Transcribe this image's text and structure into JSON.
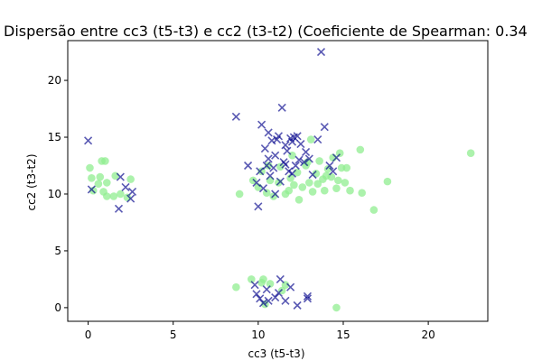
{
  "chart_data": {
    "type": "scatter",
    "title": "Dispersão entre cc3 (t5-t3) e cc2 (t3-t2) (Coeficiente de Spearman: 0.34",
    "xlabel": "cc3 (t5-t3)",
    "ylabel": "cc2 (t3-t2)",
    "xlim": [
      -1.2,
      23.5
    ],
    "ylim": [
      -1.2,
      23.5
    ],
    "xticks": [
      0,
      5,
      10,
      15,
      20
    ],
    "yticks": [
      0,
      5,
      10,
      15,
      20
    ],
    "grid": false,
    "series": [
      {
        "marker": "circle",
        "color": "#90EE90",
        "alpha": 0.75,
        "points": [
          [
            0.1,
            12.3
          ],
          [
            0.2,
            11.4
          ],
          [
            0.3,
            10.3
          ],
          [
            0.6,
            10.9
          ],
          [
            0.7,
            11.5
          ],
          [
            0.8,
            12.9
          ],
          [
            0.9,
            10.2
          ],
          [
            1.0,
            12.9
          ],
          [
            1.1,
            11.0
          ],
          [
            1.1,
            9.8
          ],
          [
            1.5,
            9.8
          ],
          [
            1.6,
            11.6
          ],
          [
            1.9,
            10.0
          ],
          [
            2.3,
            9.7
          ],
          [
            2.5,
            11.3
          ],
          [
            8.7,
            1.8
          ],
          [
            9.6,
            2.5
          ],
          [
            10.2,
            2.2
          ],
          [
            10.3,
            2.5
          ],
          [
            10.4,
            0.3
          ],
          [
            10.7,
            2.1
          ],
          [
            11.4,
            1.5
          ],
          [
            11.6,
            2.0
          ],
          [
            14.6,
            0.0
          ],
          [
            8.9,
            10.0
          ],
          [
            9.7,
            11.2
          ],
          [
            10.0,
            10.6
          ],
          [
            10.2,
            12.0
          ],
          [
            10.5,
            10.1
          ],
          [
            10.7,
            11.2
          ],
          [
            10.9,
            9.8
          ],
          [
            11.2,
            11.0
          ],
          [
            11.3,
            12.4
          ],
          [
            11.6,
            10.0
          ],
          [
            11.8,
            10.3
          ],
          [
            12.0,
            13.4
          ],
          [
            12.1,
            10.8
          ],
          [
            12.3,
            11.9
          ],
          [
            12.4,
            9.5
          ],
          [
            12.6,
            10.6
          ],
          [
            12.8,
            12.5
          ],
          [
            13.0,
            11.0
          ],
          [
            13.1,
            14.8
          ],
          [
            13.2,
            10.2
          ],
          [
            13.4,
            11.8
          ],
          [
            13.6,
            12.9
          ],
          [
            13.8,
            11.3
          ],
          [
            13.9,
            10.3
          ],
          [
            14.1,
            12.2
          ],
          [
            14.3,
            11.5
          ],
          [
            14.4,
            13.2
          ],
          [
            14.6,
            10.5
          ],
          [
            14.7,
            11.2
          ],
          [
            14.8,
            13.6
          ],
          [
            14.9,
            12.3
          ],
          [
            15.1,
            11.0
          ],
          [
            15.2,
            12.3
          ],
          [
            15.4,
            10.3
          ],
          [
            16.0,
            13.9
          ],
          [
            16.1,
            10.1
          ],
          [
            16.8,
            8.6
          ],
          [
            17.6,
            11.1
          ],
          [
            22.5,
            13.6
          ],
          [
            10.6,
            12.5
          ],
          [
            11.9,
            11.4
          ],
          [
            12.9,
            12.8
          ],
          [
            13.5,
            10.9
          ],
          [
            14.0,
            11.6
          ]
        ]
      },
      {
        "marker": "x",
        "color": "#00008B",
        "alpha": 0.65,
        "points": [
          [
            0.0,
            14.7
          ],
          [
            0.2,
            10.4
          ],
          [
            1.8,
            8.7
          ],
          [
            1.9,
            11.5
          ],
          [
            2.2,
            10.6
          ],
          [
            2.5,
            9.6
          ],
          [
            2.6,
            10.2
          ],
          [
            9.8,
            2.0
          ],
          [
            9.9,
            1.2
          ],
          [
            10.1,
            0.8
          ],
          [
            10.3,
            0.4
          ],
          [
            10.5,
            1.6
          ],
          [
            10.6,
            0.6
          ],
          [
            11.0,
            0.9
          ],
          [
            11.2,
            1.3
          ],
          [
            11.3,
            2.5
          ],
          [
            11.6,
            0.6
          ],
          [
            11.9,
            1.8
          ],
          [
            12.3,
            0.2
          ],
          [
            12.9,
            1.0
          ],
          [
            12.9,
            0.8
          ],
          [
            8.7,
            16.8
          ],
          [
            9.4,
            12.5
          ],
          [
            9.9,
            11.0
          ],
          [
            10.0,
            8.9
          ],
          [
            10.1,
            12.0
          ],
          [
            10.2,
            16.1
          ],
          [
            10.4,
            14.0
          ],
          [
            10.5,
            12.5
          ],
          [
            10.6,
            15.4
          ],
          [
            10.7,
            11.6
          ],
          [
            10.8,
            14.7
          ],
          [
            10.9,
            12.3
          ],
          [
            11.0,
            13.4
          ],
          [
            11.1,
            14.8
          ],
          [
            11.2,
            15.1
          ],
          [
            11.3,
            11.1
          ],
          [
            11.4,
            17.6
          ],
          [
            11.5,
            12.8
          ],
          [
            11.6,
            14.3
          ],
          [
            11.7,
            13.8
          ],
          [
            11.8,
            12.0
          ],
          [
            11.9,
            14.9
          ],
          [
            12.0,
            11.8
          ],
          [
            12.1,
            15.0
          ],
          [
            12.2,
            12.5
          ],
          [
            12.3,
            15.1
          ],
          [
            12.4,
            13.0
          ],
          [
            12.5,
            14.4
          ],
          [
            12.7,
            12.8
          ],
          [
            12.8,
            13.7
          ],
          [
            13.0,
            13.1
          ],
          [
            13.2,
            11.7
          ],
          [
            13.5,
            14.8
          ],
          [
            13.7,
            22.5
          ],
          [
            13.9,
            15.9
          ],
          [
            14.2,
            12.5
          ],
          [
            14.4,
            12.0
          ],
          [
            14.6,
            13.2
          ],
          [
            10.3,
            10.5
          ],
          [
            11.0,
            10.0
          ],
          [
            12.0,
            14.6
          ],
          [
            11.6,
            12.6
          ],
          [
            10.6,
            13.1
          ]
        ]
      }
    ]
  }
}
